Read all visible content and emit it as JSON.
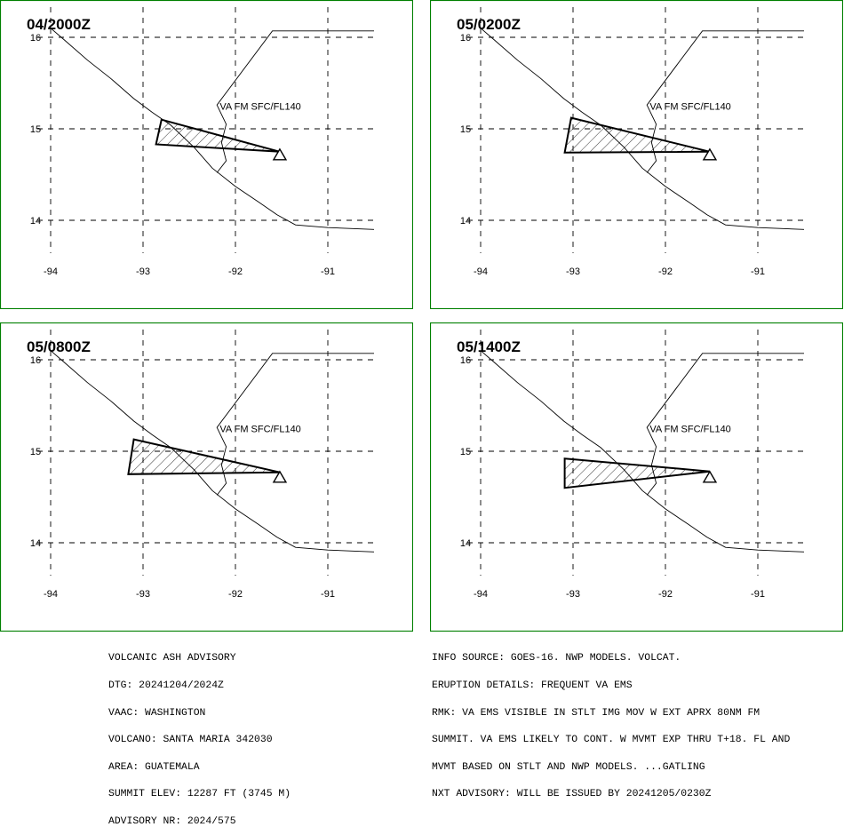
{
  "panels": [
    {
      "time": "04/2000Z",
      "label": "VA FM SFC/FL140",
      "ash": [
        [
          -92.8,
          15.1
        ],
        [
          -91.52,
          14.75
        ],
        [
          -92.86,
          14.83
        ]
      ]
    },
    {
      "time": "05/0200Z",
      "label": "VA FM SFC/FL140",
      "ash": [
        [
          -93.02,
          15.12
        ],
        [
          -91.52,
          14.75
        ],
        [
          -93.09,
          14.74
        ]
      ]
    },
    {
      "time": "05/0800Z",
      "label": "VA FM SFC/FL140",
      "ash": [
        [
          -93.1,
          15.13
        ],
        [
          -91.52,
          14.77
        ],
        [
          -93.16,
          14.75
        ]
      ]
    },
    {
      "time": "05/1400Z",
      "label": "VA FM SFC/FL140",
      "ash": [
        [
          -93.09,
          14.92
        ],
        [
          -91.52,
          14.78
        ],
        [
          -93.09,
          14.6
        ]
      ]
    }
  ],
  "axes": {
    "lon_ticks": [
      "-94",
      "-93",
      "-92",
      "-91"
    ],
    "lat_ticks": [
      "16",
      "15",
      "14"
    ]
  },
  "advisory_left": [
    "VOLCANIC ASH ADVISORY",
    "DTG: 20241204/2024Z",
    "VAAC: WASHINGTON",
    "VOLCANO: SANTA MARIA 342030",
    "AREA: GUATEMALA",
    "SUMMIT ELEV: 12287 FT (3745 M)",
    "ADVISORY NR: 2024/575"
  ],
  "advisory_right": [
    "INFO SOURCE: GOES-16. NWP MODELS. VOLCAT.",
    "ERUPTION DETAILS: FREQUENT VA EMS",
    "RMK: VA EMS VISIBLE IN STLT IMG MOV W EXT APRX 80NM FM",
    "SUMMIT. VA EMS LIKELY TO CONT. W MVMT EXP THRU T+18. FL AND",
    "MVMT BASED ON STLT AND NWP MODELS. ...GATLING",
    "NXT ADVISORY: WILL BE ISSUED BY 20241205/0230Z"
  ],
  "colors": {
    "frame": "#008000",
    "ink": "#000000"
  }
}
